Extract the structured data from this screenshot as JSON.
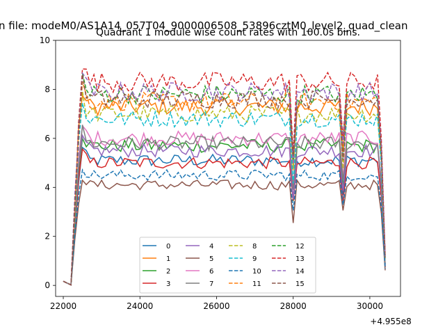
{
  "header": {
    "suptitle": "n file: modeM0/AS1A14_057T04_9000006508_53896cztM0_level2_quad_clean",
    "title": "Quadrant 1 module wise count rates with 100.0s bins."
  },
  "chart_data": {
    "type": "line",
    "title": "Quadrant 1 module wise count rates with 100.0s bins.",
    "xlabel": "",
    "ylabel": "",
    "x_offset_label": "+4.955e8",
    "xlim": [
      21800,
      30800
    ],
    "ylim": [
      -0.45,
      10
    ],
    "xticks": [
      22000,
      24000,
      26000,
      28000,
      30000
    ],
    "xtick_labels": [
      "22000",
      "24000",
      "26000",
      "28000",
      "30000"
    ],
    "yticks": [
      0,
      2,
      4,
      6,
      8,
      10
    ],
    "ytick_labels": [
      "0",
      "2",
      "4",
      "6",
      "8",
      "10"
    ],
    "grid": false,
    "legend_position": "lower center",
    "legend_columns": 4,
    "x_start": 22000,
    "x_step": 100,
    "dips": [
      {
        "x": 28000,
        "factor": 0.65
      },
      {
        "x": 29300,
        "factor": 0.72
      }
    ],
    "series": [
      {
        "name": "0",
        "color": "#1f77b4",
        "dash": false,
        "level": 5.1
      },
      {
        "name": "1",
        "color": "#ff7f0e",
        "dash": false,
        "level": 7.3
      },
      {
        "name": "2",
        "color": "#2ca02c",
        "dash": false,
        "level": 5.7
      },
      {
        "name": "3",
        "color": "#d62728",
        "dash": false,
        "level": 5.0
      },
      {
        "name": "4",
        "color": "#9467bd",
        "dash": false,
        "level": 5.5
      },
      {
        "name": "5",
        "color": "#8c564b",
        "dash": false,
        "level": 4.1
      },
      {
        "name": "6",
        "color": "#e377c2",
        "dash": false,
        "level": 6.0
      },
      {
        "name": "7",
        "color": "#7f7f7f",
        "dash": false,
        "level": 5.8
      },
      {
        "name": "8",
        "color": "#bcbd22",
        "dash": true,
        "level": 7.0
      },
      {
        "name": "9",
        "color": "#17becf",
        "dash": true,
        "level": 6.8
      },
      {
        "name": "10",
        "color": "#1f77b4",
        "dash": true,
        "level": 4.5
      },
      {
        "name": "11",
        "color": "#ff7f0e",
        "dash": true,
        "level": 7.5
      },
      {
        "name": "12",
        "color": "#2ca02c",
        "dash": true,
        "level": 7.8
      },
      {
        "name": "13",
        "color": "#d62728",
        "dash": true,
        "level": 8.3
      },
      {
        "name": "14",
        "color": "#9467bd",
        "dash": true,
        "level": 7.9
      },
      {
        "name": "15",
        "color": "#8c564b",
        "dash": true,
        "level": 7.6
      }
    ]
  }
}
